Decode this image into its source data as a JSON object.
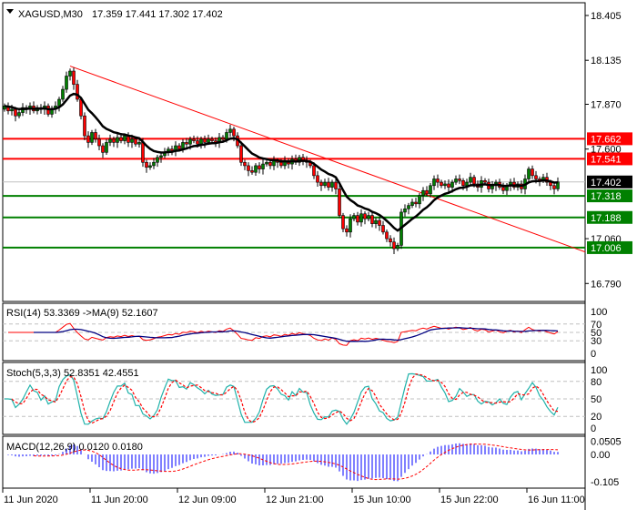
{
  "header": {
    "symbol": "XAGUSD,M30",
    "ohlc": "17.359 17.441 17.302 17.402"
  },
  "indicators": {
    "rsi_label": "RSI(14) 53.3369  ->MA(9) 52.1607",
    "stoch_label": "Stoch(5,3,3) 52.8351 42.4551",
    "macd_label": "MACD(12,26,9) 0.0120 0.0180"
  },
  "colors": {
    "bull": "#008000",
    "bear": "#ff0000",
    "resistance": "#ff0000",
    "support": "#008000",
    "trendline": "#ff0000",
    "ma": "#000000",
    "rsi": "#ff0000",
    "rsi_ma": "#000080",
    "stoch_main": "#20b2aa",
    "stoch_signal": "#ff0000",
    "macd_hist": "#0000ff",
    "macd_signal": "#ff0000"
  },
  "chart_data": {
    "type": "candlestick",
    "symbol": "XAGUSD",
    "timeframe": "M30",
    "ylim": [
      16.73,
      18.48
    ],
    "price_axis": [
      "18.405",
      "18.135",
      "17.870",
      "17.600",
      "17.060",
      "16.790"
    ],
    "time_axis": [
      "11 Jun 2020",
      "11 Jun 20:00",
      "12 Jun 09:00",
      "12 Jun 21:00",
      "15 Jun 10:00",
      "15 Jun 22:00",
      "16 Jun 11:00"
    ],
    "first_open": 17.84,
    "close": [
      17.86,
      17.83,
      17.84,
      17.8,
      17.82,
      17.85,
      17.84,
      17.86,
      17.83,
      17.85,
      17.84,
      17.86,
      17.81,
      17.84,
      17.86,
      17.9,
      17.96,
      18.04,
      18.07,
      17.99,
      17.9,
      17.8,
      17.68,
      17.64,
      17.7,
      17.66,
      17.62,
      17.58,
      17.64,
      17.66,
      17.64,
      17.67,
      17.65,
      17.68,
      17.64,
      17.66,
      17.63,
      17.64,
      17.52,
      17.49,
      17.5,
      17.52,
      17.55,
      17.56,
      17.58,
      17.6,
      17.59,
      17.62,
      17.6,
      17.64,
      17.63,
      17.66,
      17.65,
      17.63,
      17.66,
      17.64,
      17.66,
      17.65,
      17.64,
      17.67,
      17.66,
      17.7,
      17.72,
      17.68,
      17.62,
      17.52,
      17.5,
      17.47,
      17.46,
      17.5,
      17.48,
      17.51,
      17.52,
      17.5,
      17.53,
      17.52,
      17.5,
      17.53,
      17.51,
      17.54,
      17.52,
      17.55,
      17.53,
      17.52,
      17.5,
      17.44,
      17.4,
      17.38,
      17.4,
      17.37,
      17.4,
      17.36,
      17.2,
      17.12,
      17.1,
      17.18,
      17.2,
      17.16,
      17.21,
      17.18,
      17.2,
      17.15,
      17.17,
      17.14,
      17.1,
      17.06,
      17.04,
      17.0,
      17.02,
      17.22,
      17.24,
      17.26,
      17.28,
      17.27,
      17.32,
      17.35,
      17.33,
      17.38,
      17.42,
      17.4,
      17.38,
      17.39,
      17.37,
      17.4,
      17.42,
      17.41,
      17.38,
      17.4,
      17.43,
      17.39,
      17.37,
      17.41,
      17.4,
      17.36,
      17.38,
      17.4,
      17.37,
      17.35,
      17.38,
      17.4,
      17.37,
      17.39,
      17.36,
      17.42,
      17.48,
      17.44,
      17.42,
      17.41,
      17.43,
      17.4,
      17.38,
      17.36,
      17.402
    ],
    "horizontal_levels": [
      {
        "price": "17.662",
        "kind": "resistance"
      },
      {
        "price": "17.541",
        "kind": "resistance"
      },
      {
        "price": "17.318",
        "kind": "support"
      },
      {
        "price": "17.188",
        "kind": "support"
      },
      {
        "price": "17.006",
        "kind": "support"
      }
    ],
    "current_price": "17.402",
    "trendline": {
      "from": {
        "bar": 18,
        "price": 18.1
      },
      "to": {
        "bar": 159.5,
        "price": 16.98
      }
    },
    "rsi_axis": [
      "100",
      "70",
      "50",
      "30",
      "0"
    ],
    "stoch_axis": [
      "100",
      "80",
      "50",
      "20",
      "0"
    ],
    "macd_axis": [
      "0.0505",
      "0.00",
      "-0.105"
    ]
  }
}
